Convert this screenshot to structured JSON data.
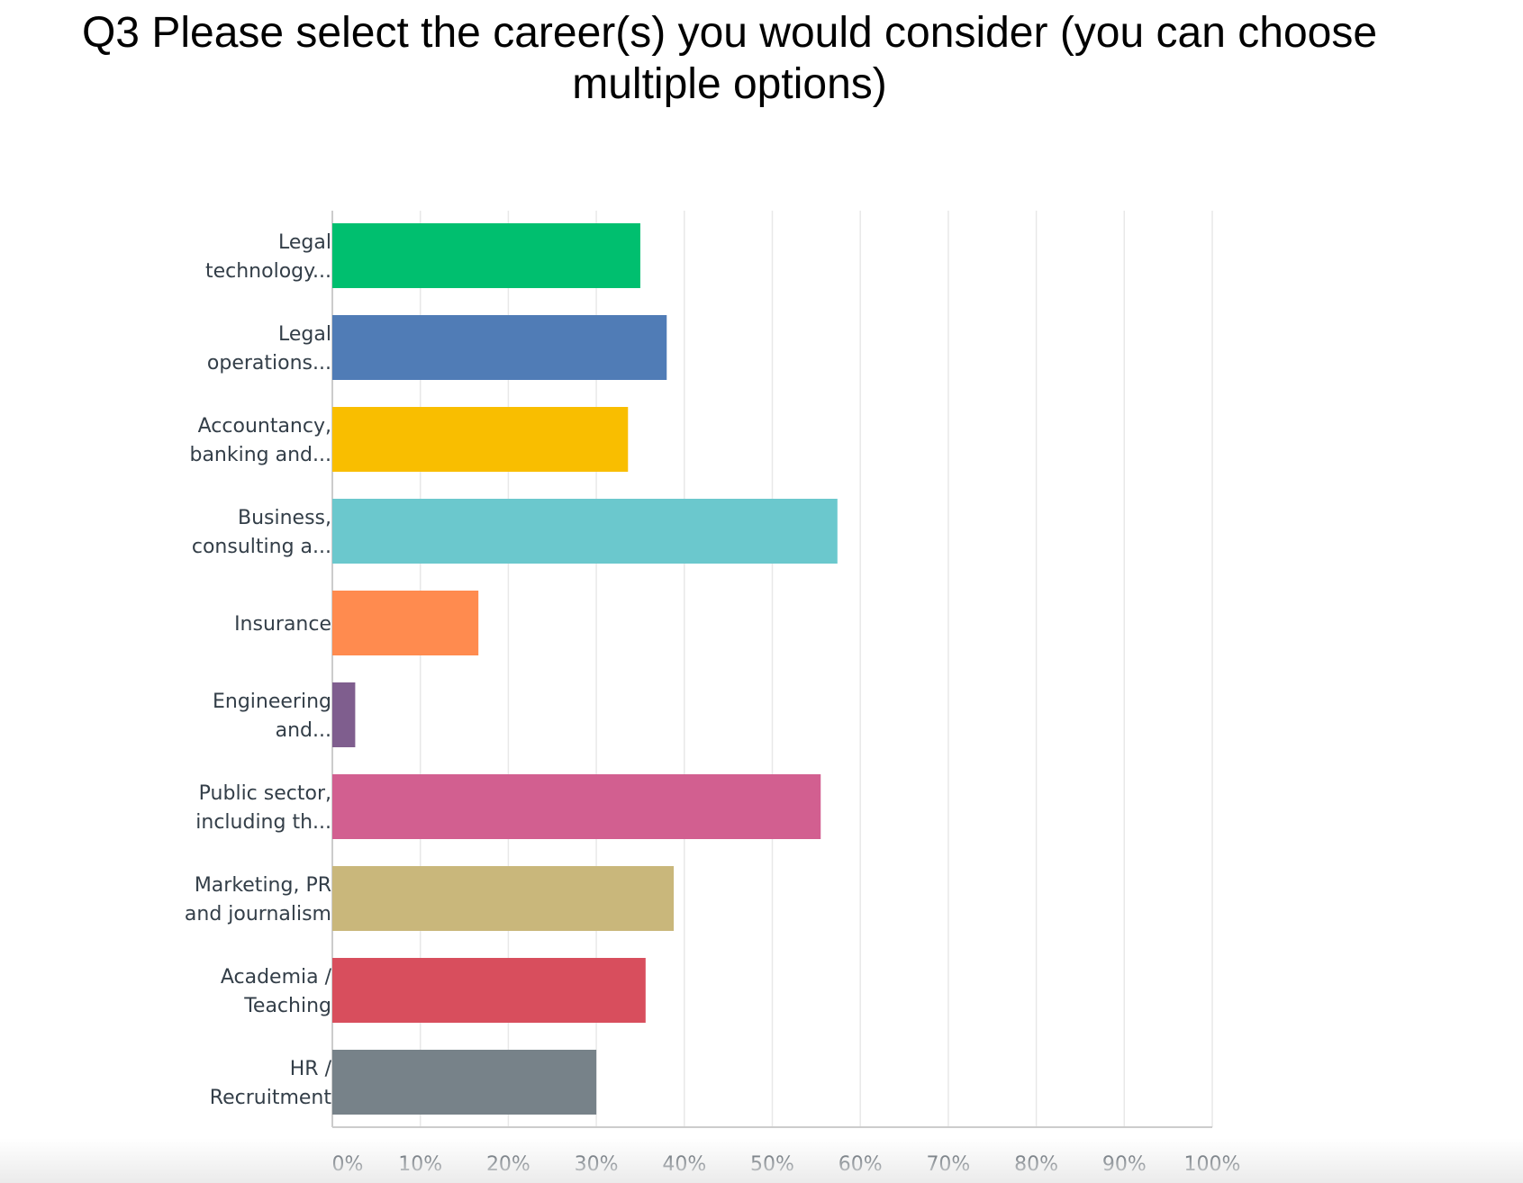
{
  "chart_data": {
    "type": "bar",
    "orientation": "horizontal",
    "title_lines": [
      "Q3 Please select the career(s) you would consider (you can choose",
      "multiple options)"
    ],
    "categories": [
      [
        "Legal",
        "technology..."
      ],
      [
        "Legal",
        "operations..."
      ],
      [
        "Accountancy,",
        "banking and..."
      ],
      [
        "Business,",
        "consulting a..."
      ],
      [
        "Insurance"
      ],
      [
        "Engineering",
        "and..."
      ],
      [
        "Public sector,",
        "including th..."
      ],
      [
        "Marketing, PR",
        "and journalism"
      ],
      [
        "Academia /",
        "Teaching"
      ],
      [
        "HR /",
        "Recruitment"
      ]
    ],
    "values": [
      35,
      38,
      33.6,
      57.4,
      16.6,
      2.6,
      55.5,
      38.8,
      35.6,
      30
    ],
    "colors": [
      "#00bf6f",
      "#507cb6",
      "#f9be00",
      "#6bc8cd",
      "#ff8b4f",
      "#7f5e8e",
      "#d25f90",
      "#c9b77b",
      "#d84e5d",
      "#778289"
    ],
    "xlim": [
      0,
      100
    ],
    "ticks": [
      0,
      10,
      20,
      30,
      40,
      50,
      60,
      70,
      80,
      90,
      100
    ],
    "tick_labels": [
      "0%",
      "10%",
      "20%",
      "30%",
      "40%",
      "50%",
      "60%",
      "70%",
      "80%",
      "90%",
      "100%"
    ],
    "grid": true,
    "grid_color": "#e8e8e8",
    "axis_color": "#cccccc"
  }
}
